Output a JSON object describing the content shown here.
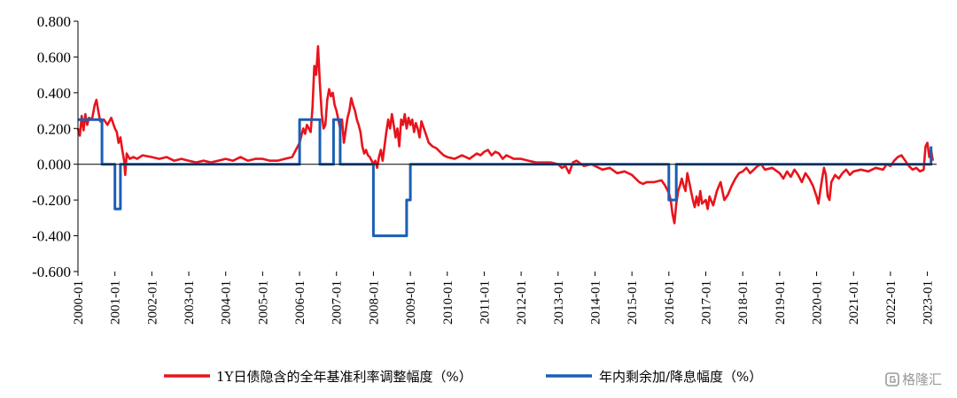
{
  "chart_data": {
    "type": "line",
    "xlabel": "",
    "ylabel": "",
    "ylim": [
      -0.6,
      0.8
    ],
    "y_ticks": [
      "0.800",
      "0.600",
      "0.400",
      "0.200",
      "0.000",
      "-0.200",
      "-0.400",
      "-0.600"
    ],
    "x_ticks": [
      "2000-01",
      "2001-01",
      "2002-01",
      "2003-01",
      "2004-01",
      "2005-01",
      "2006-01",
      "2007-01",
      "2008-01",
      "2009-01",
      "2010-01",
      "2011-01",
      "2012-01",
      "2013-01",
      "2014-01",
      "2015-01",
      "2016-01",
      "2017-01",
      "2018-01",
      "2019-01",
      "2020-01",
      "2021-01",
      "2022-01",
      "2023-01"
    ],
    "xlim": [
      2000.0,
      2023.25
    ],
    "grid": false,
    "legend_position": "bottom",
    "series": [
      {
        "name": "1Y日债隐含的全年基准利率调整幅度（%）",
        "color": "#e8141c",
        "points": [
          [
            2000.0,
            0.2
          ],
          [
            2000.05,
            0.16
          ],
          [
            2000.1,
            0.27
          ],
          [
            2000.15,
            0.19
          ],
          [
            2000.2,
            0.28
          ],
          [
            2000.25,
            0.22
          ],
          [
            2000.3,
            0.26
          ],
          [
            2000.38,
            0.25
          ],
          [
            2000.45,
            0.33
          ],
          [
            2000.5,
            0.36
          ],
          [
            2000.55,
            0.3
          ],
          [
            2000.6,
            0.24
          ],
          [
            2000.7,
            0.25
          ],
          [
            2000.8,
            0.22
          ],
          [
            2000.9,
            0.26
          ],
          [
            2001.0,
            0.2
          ],
          [
            2001.05,
            0.18
          ],
          [
            2001.1,
            0.12
          ],
          [
            2001.15,
            0.15
          ],
          [
            2001.2,
            0.08
          ],
          [
            2001.25,
            0.02
          ],
          [
            2001.28,
            -0.06
          ],
          [
            2001.32,
            0.06
          ],
          [
            2001.4,
            0.03
          ],
          [
            2001.5,
            0.04
          ],
          [
            2001.6,
            0.03
          ],
          [
            2001.75,
            0.05
          ],
          [
            2002.0,
            0.04
          ],
          [
            2002.2,
            0.03
          ],
          [
            2002.4,
            0.04
          ],
          [
            2002.6,
            0.02
          ],
          [
            2002.8,
            0.03
          ],
          [
            2003.0,
            0.02
          ],
          [
            2003.2,
            0.01
          ],
          [
            2003.4,
            0.02
          ],
          [
            2003.6,
            0.01
          ],
          [
            2003.8,
            0.02
          ],
          [
            2004.0,
            0.03
          ],
          [
            2004.2,
            0.02
          ],
          [
            2004.4,
            0.04
          ],
          [
            2004.6,
            0.02
          ],
          [
            2004.8,
            0.03
          ],
          [
            2005.0,
            0.03
          ],
          [
            2005.2,
            0.02
          ],
          [
            2005.4,
            0.02
          ],
          [
            2005.6,
            0.03
          ],
          [
            2005.8,
            0.04
          ],
          [
            2005.9,
            0.08
          ],
          [
            2006.0,
            0.12
          ],
          [
            2006.05,
            0.16
          ],
          [
            2006.1,
            0.2
          ],
          [
            2006.15,
            0.17
          ],
          [
            2006.2,
            0.22
          ],
          [
            2006.3,
            0.18
          ],
          [
            2006.35,
            0.32
          ],
          [
            2006.4,
            0.55
          ],
          [
            2006.45,
            0.5
          ],
          [
            2006.5,
            0.66
          ],
          [
            2006.55,
            0.45
          ],
          [
            2006.6,
            0.28
          ],
          [
            2006.65,
            0.2
          ],
          [
            2006.7,
            0.22
          ],
          [
            2006.75,
            0.36
          ],
          [
            2006.8,
            0.42
          ],
          [
            2006.85,
            0.38
          ],
          [
            2006.9,
            0.4
          ],
          [
            2006.95,
            0.33
          ],
          [
            2007.0,
            0.3
          ],
          [
            2007.05,
            0.25
          ],
          [
            2007.1,
            0.2
          ],
          [
            2007.15,
            0.25
          ],
          [
            2007.2,
            0.12
          ],
          [
            2007.3,
            0.26
          ],
          [
            2007.35,
            0.3
          ],
          [
            2007.4,
            0.37
          ],
          [
            2007.45,
            0.33
          ],
          [
            2007.5,
            0.3
          ],
          [
            2007.55,
            0.25
          ],
          [
            2007.6,
            0.22
          ],
          [
            2007.65,
            0.18
          ],
          [
            2007.7,
            0.1
          ],
          [
            2007.75,
            0.06
          ],
          [
            2007.8,
            0.08
          ],
          [
            2007.85,
            0.05
          ],
          [
            2007.9,
            0.04
          ],
          [
            2008.0,
            0.0
          ],
          [
            2008.05,
            0.02
          ],
          [
            2008.1,
            -0.02
          ],
          [
            2008.15,
            0.04
          ],
          [
            2008.2,
            0.08
          ],
          [
            2008.25,
            0.02
          ],
          [
            2008.3,
            0.1
          ],
          [
            2008.35,
            0.18
          ],
          [
            2008.4,
            0.25
          ],
          [
            2008.45,
            0.2
          ],
          [
            2008.5,
            0.28
          ],
          [
            2008.55,
            0.22
          ],
          [
            2008.6,
            0.15
          ],
          [
            2008.65,
            0.2
          ],
          [
            2008.7,
            0.1
          ],
          [
            2008.75,
            0.25
          ],
          [
            2008.8,
            0.22
          ],
          [
            2008.85,
            0.28
          ],
          [
            2008.9,
            0.2
          ],
          [
            2008.95,
            0.26
          ],
          [
            2009.0,
            0.22
          ],
          [
            2009.05,
            0.25
          ],
          [
            2009.1,
            0.18
          ],
          [
            2009.15,
            0.23
          ],
          [
            2009.2,
            0.2
          ],
          [
            2009.25,
            0.15
          ],
          [
            2009.3,
            0.24
          ],
          [
            2009.4,
            0.18
          ],
          [
            2009.5,
            0.12
          ],
          [
            2009.6,
            0.1
          ],
          [
            2009.7,
            0.09
          ],
          [
            2009.8,
            0.07
          ],
          [
            2009.9,
            0.05
          ],
          [
            2010.0,
            0.04
          ],
          [
            2010.2,
            0.03
          ],
          [
            2010.4,
            0.05
          ],
          [
            2010.6,
            0.03
          ],
          [
            2010.8,
            0.06
          ],
          [
            2010.9,
            0.05
          ],
          [
            2011.0,
            0.07
          ],
          [
            2011.1,
            0.08
          ],
          [
            2011.2,
            0.05
          ],
          [
            2011.3,
            0.07
          ],
          [
            2011.4,
            0.06
          ],
          [
            2011.5,
            0.03
          ],
          [
            2011.6,
            0.05
          ],
          [
            2011.8,
            0.03
          ],
          [
            2012.0,
            0.03
          ],
          [
            2012.2,
            0.02
          ],
          [
            2012.4,
            0.01
          ],
          [
            2012.6,
            0.01
          ],
          [
            2012.8,
            0.01
          ],
          [
            2013.0,
            0.0
          ],
          [
            2013.1,
            -0.02
          ],
          [
            2013.2,
            -0.01
          ],
          [
            2013.3,
            -0.05
          ],
          [
            2013.4,
            0.01
          ],
          [
            2013.5,
            0.02
          ],
          [
            2013.7,
            -0.01
          ],
          [
            2013.9,
            0.0
          ],
          [
            2014.0,
            -0.01
          ],
          [
            2014.2,
            -0.03
          ],
          [
            2014.4,
            -0.02
          ],
          [
            2014.6,
            -0.05
          ],
          [
            2014.8,
            -0.04
          ],
          [
            2015.0,
            -0.06
          ],
          [
            2015.1,
            -0.08
          ],
          [
            2015.2,
            -0.1
          ],
          [
            2015.3,
            -0.11
          ],
          [
            2015.4,
            -0.1
          ],
          [
            2015.6,
            -0.1
          ],
          [
            2015.8,
            -0.09
          ],
          [
            2015.9,
            -0.12
          ],
          [
            2016.0,
            -0.16
          ],
          [
            2016.05,
            -0.2
          ],
          [
            2016.1,
            -0.28
          ],
          [
            2016.15,
            -0.33
          ],
          [
            2016.2,
            -0.22
          ],
          [
            2016.25,
            -0.15
          ],
          [
            2016.3,
            -0.12
          ],
          [
            2016.35,
            -0.08
          ],
          [
            2016.4,
            -0.12
          ],
          [
            2016.45,
            -0.15
          ],
          [
            2016.5,
            -0.05
          ],
          [
            2016.55,
            -0.1
          ],
          [
            2016.6,
            -0.15
          ],
          [
            2016.65,
            -0.2
          ],
          [
            2016.7,
            -0.24
          ],
          [
            2016.75,
            -0.18
          ],
          [
            2016.8,
            -0.23
          ],
          [
            2016.85,
            -0.15
          ],
          [
            2016.9,
            -0.22
          ],
          [
            2017.0,
            -0.2
          ],
          [
            2017.05,
            -0.25
          ],
          [
            2017.1,
            -0.18
          ],
          [
            2017.2,
            -0.23
          ],
          [
            2017.3,
            -0.15
          ],
          [
            2017.4,
            -0.1
          ],
          [
            2017.5,
            -0.2
          ],
          [
            2017.6,
            -0.17
          ],
          [
            2017.7,
            -0.12
          ],
          [
            2017.8,
            -0.08
          ],
          [
            2017.9,
            -0.05
          ],
          [
            2018.0,
            -0.04
          ],
          [
            2018.1,
            -0.02
          ],
          [
            2018.2,
            -0.05
          ],
          [
            2018.3,
            -0.03
          ],
          [
            2018.4,
            -0.01
          ],
          [
            2018.5,
            0.0
          ],
          [
            2018.6,
            -0.03
          ],
          [
            2018.8,
            -0.02
          ],
          [
            2019.0,
            -0.05
          ],
          [
            2019.1,
            -0.08
          ],
          [
            2019.2,
            -0.04
          ],
          [
            2019.3,
            -0.07
          ],
          [
            2019.4,
            -0.03
          ],
          [
            2019.5,
            -0.06
          ],
          [
            2019.6,
            -0.1
          ],
          [
            2019.7,
            -0.05
          ],
          [
            2019.8,
            -0.08
          ],
          [
            2019.9,
            -0.12
          ],
          [
            2020.0,
            -0.18
          ],
          [
            2020.05,
            -0.22
          ],
          [
            2020.1,
            -0.15
          ],
          [
            2020.15,
            -0.08
          ],
          [
            2020.2,
            -0.02
          ],
          [
            2020.25,
            -0.06
          ],
          [
            2020.3,
            -0.18
          ],
          [
            2020.35,
            -0.2
          ],
          [
            2020.4,
            -0.1
          ],
          [
            2020.5,
            -0.06
          ],
          [
            2020.6,
            -0.08
          ],
          [
            2020.7,
            -0.05
          ],
          [
            2020.8,
            -0.03
          ],
          [
            2020.9,
            -0.06
          ],
          [
            2021.0,
            -0.04
          ],
          [
            2021.2,
            -0.03
          ],
          [
            2021.4,
            -0.04
          ],
          [
            2021.6,
            -0.02
          ],
          [
            2021.8,
            -0.03
          ],
          [
            2021.9,
            0.0
          ],
          [
            2022.0,
            -0.01
          ],
          [
            2022.1,
            0.02
          ],
          [
            2022.2,
            0.04
          ],
          [
            2022.3,
            0.05
          ],
          [
            2022.4,
            0.02
          ],
          [
            2022.5,
            -0.01
          ],
          [
            2022.6,
            -0.03
          ],
          [
            2022.7,
            -0.02
          ],
          [
            2022.8,
            -0.04
          ],
          [
            2022.9,
            -0.03
          ],
          [
            2022.95,
            0.1
          ],
          [
            2023.0,
            0.12
          ],
          [
            2023.05,
            0.04
          ],
          [
            2023.1,
            0.08
          ],
          [
            2023.15,
            0.02
          ]
        ]
      },
      {
        "name": "年内剩余加/降息幅度（%）",
        "color": "#1a5fb4",
        "points": [
          [
            2000.0,
            0.25
          ],
          [
            2000.65,
            0.25
          ],
          [
            2000.65,
            0.0
          ],
          [
            2001.0,
            0.0
          ],
          [
            2001.0,
            -0.25
          ],
          [
            2001.15,
            -0.25
          ],
          [
            2001.15,
            0.0
          ],
          [
            2006.0,
            0.0
          ],
          [
            2006.0,
            0.25
          ],
          [
            2006.55,
            0.25
          ],
          [
            2006.55,
            0.0
          ],
          [
            2006.92,
            0.0
          ],
          [
            2006.92,
            0.25
          ],
          [
            2007.1,
            0.25
          ],
          [
            2007.1,
            0.0
          ],
          [
            2008.0,
            0.0
          ],
          [
            2008.0,
            -0.4
          ],
          [
            2008.9,
            -0.4
          ],
          [
            2008.9,
            -0.2
          ],
          [
            2009.0,
            -0.2
          ],
          [
            2009.0,
            0.0
          ],
          [
            2016.0,
            0.0
          ],
          [
            2016.0,
            -0.2
          ],
          [
            2016.2,
            -0.2
          ],
          [
            2016.2,
            0.0
          ],
          [
            2023.1,
            0.0
          ],
          [
            2023.1,
            0.1
          ]
        ]
      }
    ]
  },
  "watermark": {
    "text": "格隆汇",
    "icon": "gelonghui-logo-icon"
  }
}
